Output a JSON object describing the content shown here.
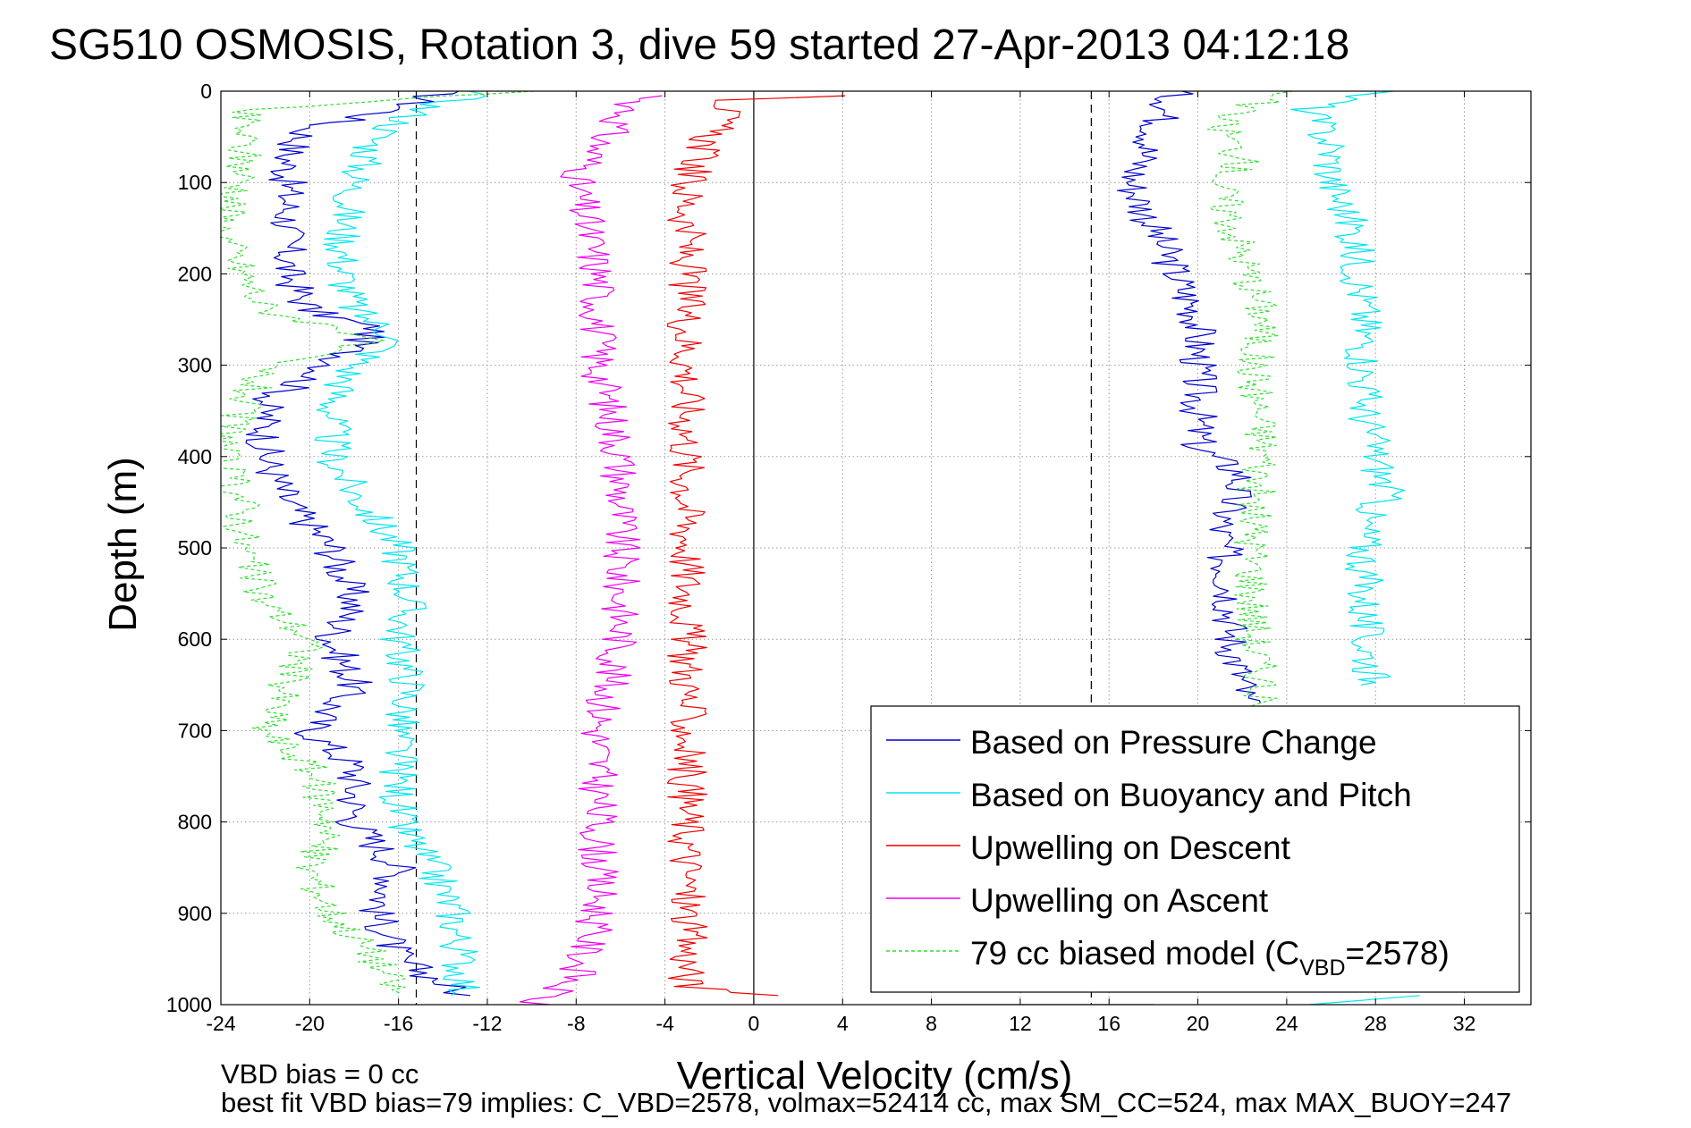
{
  "chart_data": {
    "type": "line",
    "title": "SG510 OSMOSIS, Rotation 3, dive 59 started 27-Apr-2013 04:12:18",
    "xlabel": "Vertical Velocity (cm/s)",
    "ylabel": "Depth (m)",
    "xlim": [
      -24,
      35
    ],
    "ylim": [
      0,
      1000
    ],
    "y_reversed": true,
    "grid": true,
    "x_ticks": [
      -24,
      -20,
      -16,
      -12,
      -8,
      -4,
      0,
      4,
      8,
      12,
      16,
      20,
      24,
      28,
      32
    ],
    "y_ticks": [
      0,
      100,
      200,
      300,
      400,
      500,
      600,
      700,
      800,
      900,
      1000
    ],
    "reference_lines": [
      {
        "x": -15.2,
        "style": "dashed",
        "color": "#000000"
      },
      {
        "x": 0,
        "style": "solid",
        "color": "#000000"
      },
      {
        "x": 15.2,
        "style": "dashed",
        "color": "#000000"
      }
    ],
    "legend_position": "bottom-right",
    "series": [
      {
        "name": "Based on Pressure Change",
        "color": "#0000cc",
        "style": "solid",
        "points": [
          [
            [
              -14,
              0
            ],
            [
              -16,
              20
            ],
            [
              -20,
              40
            ],
            [
              -21,
              70
            ],
            [
              -21,
              100
            ],
            [
              -21,
              150
            ],
            [
              -21,
              200
            ],
            [
              -20,
              240
            ],
            [
              -17,
              260
            ],
            [
              -19,
              300
            ],
            [
              -22,
              340
            ],
            [
              -22,
              400
            ],
            [
              -21,
              450
            ],
            [
              -19,
              500
            ],
            [
              -18,
              560
            ],
            [
              -19,
              600
            ],
            [
              -18,
              650
            ],
            [
              -20,
              700
            ],
            [
              -18,
              740
            ],
            [
              -18,
              800
            ],
            [
              -16,
              850
            ],
            [
              -17,
              900
            ],
            [
              -16,
              950
            ],
            [
              -13,
              990
            ]
          ],
          [
            [
              19,
              0
            ],
            [
              18,
              50
            ],
            [
              17,
              100
            ],
            [
              18,
              150
            ],
            [
              19,
              200
            ],
            [
              20,
              250
            ],
            [
              20,
              300
            ],
            [
              20,
              350
            ],
            [
              20,
              390
            ],
            [
              22,
              420
            ],
            [
              21,
              480
            ],
            [
              21.5,
              550
            ],
            [
              21.5,
              600
            ],
            [
              22,
              650
            ],
            [
              22,
              670
            ]
          ],
          [
            [
              18,
              1000
            ],
            [
              8,
              1000
            ]
          ]
        ]
      },
      {
        "name": "Based on Buoyancy and Pitch",
        "color": "#00e5ee",
        "style": "solid",
        "points": [
          [
            [
              -12,
              0
            ],
            [
              -15,
              20
            ],
            [
              -17,
              50
            ],
            [
              -18,
              100
            ],
            [
              -18.5,
              150
            ],
            [
              -18.5,
              200
            ],
            [
              -18,
              240
            ],
            [
              -16,
              270
            ],
            [
              -18,
              300
            ],
            [
              -19,
              340
            ],
            [
              -19,
              400
            ],
            [
              -18,
              440
            ],
            [
              -17,
              470
            ],
            [
              -16,
              500
            ],
            [
              -15.5,
              560
            ],
            [
              -16,
              600
            ],
            [
              -15.5,
              650
            ],
            [
              -16,
              700
            ],
            [
              -16,
              800
            ],
            [
              -14.5,
              850
            ],
            [
              -13.5,
              900
            ],
            [
              -13,
              990
            ]
          ],
          [
            [
              28,
              0
            ],
            [
              25,
              20
            ],
            [
              26,
              60
            ],
            [
              26,
              100
            ],
            [
              27,
              150
            ],
            [
              27.5,
              250
            ],
            [
              27.5,
              350
            ],
            [
              28,
              400
            ],
            [
              28.5,
              440
            ],
            [
              27.5,
              470
            ],
            [
              27.5,
              550
            ],
            [
              27.5,
              600
            ],
            [
              28,
              650
            ]
          ],
          [
            [
              30,
              990
            ],
            [
              25,
              1000
            ]
          ]
        ]
      },
      {
        "name": "Upwelling on Descent",
        "color": "#ee0000",
        "style": "solid",
        "points": [
          [
            [
              5,
              5
            ],
            [
              -1,
              10
            ],
            [
              -2,
              50
            ],
            [
              -3,
              100
            ],
            [
              -3,
              150
            ],
            [
              -3,
              200
            ],
            [
              -3,
              300
            ],
            [
              -3,
              400
            ],
            [
              -3,
              500
            ],
            [
              -3,
              600
            ],
            [
              -3,
              700
            ],
            [
              -3,
              800
            ],
            [
              -3,
              900
            ],
            [
              -3,
              980
            ],
            [
              1,
              990
            ]
          ]
        ]
      },
      {
        "name": "Upwelling on Ascent",
        "color": "#ee00ee",
        "style": "solid",
        "points": [
          [
            [
              -5,
              5
            ],
            [
              -6,
              30
            ],
            [
              -7,
              60
            ],
            [
              -8,
              100
            ],
            [
              -7,
              200
            ],
            [
              -7,
              300
            ],
            [
              -6,
              400
            ],
            [
              -6,
              500
            ],
            [
              -6,
              600
            ],
            [
              -7,
              700
            ],
            [
              -7,
              800
            ],
            [
              -7,
              900
            ],
            [
              -8,
              970
            ],
            [
              -10,
              1000
            ]
          ]
        ]
      },
      {
        "name": "79 cc biased model (C",
        "subscript": "VBD",
        "suffix": "=2578)",
        "color": "#33dd33",
        "style": "dashed",
        "points": [
          [
            [
              -10,
              0
            ],
            [
              -23,
              20
            ],
            [
              -23,
              100
            ],
            [
              -24,
              150
            ],
            [
              -23,
              200
            ],
            [
              -22,
              240
            ],
            [
              -17,
              270
            ],
            [
              -22,
              300
            ],
            [
              -23,
              340
            ],
            [
              -24,
              400
            ],
            [
              -23,
              450
            ],
            [
              -23,
              500
            ],
            [
              -22,
              560
            ],
            [
              -20,
              600
            ],
            [
              -21,
              650
            ],
            [
              -22,
              700
            ],
            [
              -20,
              740
            ],
            [
              -19,
              800
            ],
            [
              -20,
              850
            ],
            [
              -19,
              900
            ],
            [
              -17,
              950
            ],
            [
              -16,
              990
            ]
          ],
          [
            [
              24,
              0
            ],
            [
              21,
              30
            ],
            [
              22,
              80
            ],
            [
              21,
              100
            ],
            [
              22,
              180
            ],
            [
              23,
              250
            ],
            [
              22.5,
              300
            ],
            [
              23,
              400
            ],
            [
              22.5,
              450
            ],
            [
              22.5,
              500
            ],
            [
              22.5,
              600
            ],
            [
              23,
              650
            ],
            [
              22,
              700
            ]
          ]
        ]
      }
    ]
  },
  "footnotes": {
    "line1": "VBD bias = 0 cc",
    "line2": "best fit VBD bias=79 implies: C_VBD=2578, volmax=52414 cc, max SM_CC=524, max MAX_BUOY=247"
  }
}
